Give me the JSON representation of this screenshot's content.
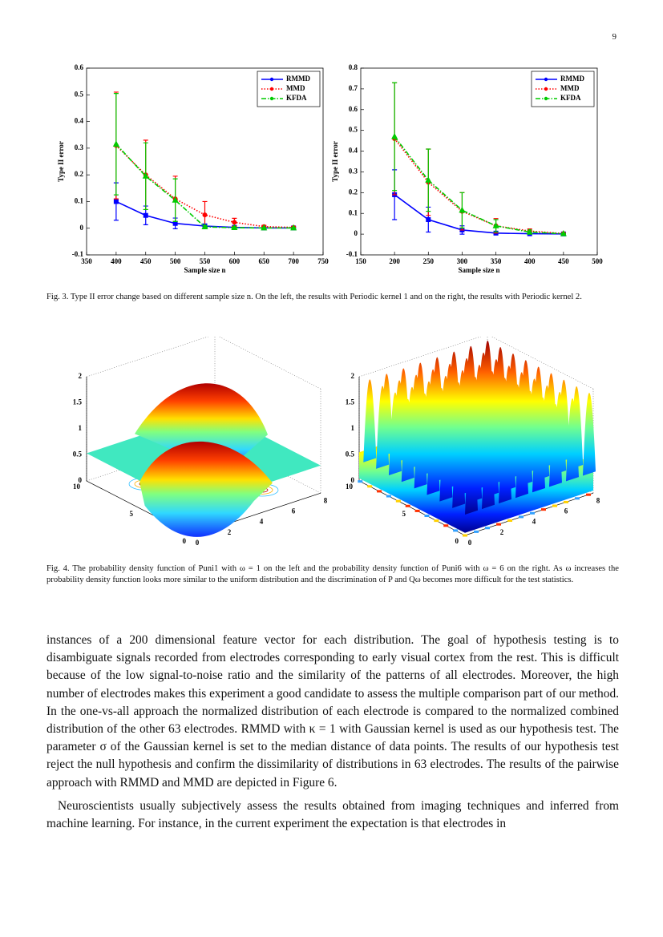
{
  "page_number": "9",
  "chart_data": [
    {
      "type": "line",
      "xlabel": "Sample size n",
      "ylabel": "Type II error",
      "x": [
        400,
        450,
        500,
        550,
        600,
        650,
        700
      ],
      "xlim": [
        350,
        750
      ],
      "xticks": [
        350,
        400,
        450,
        500,
        550,
        600,
        650,
        700,
        750
      ],
      "ylim": [
        -0.1,
        0.6
      ],
      "yticks": [
        -0.1,
        0,
        0.1,
        0.2,
        0.3,
        0.4,
        0.5,
        0.6
      ],
      "legend": "upper right",
      "series": [
        {
          "name": "RMMD",
          "color": "#0000ff",
          "linestyle": "solid",
          "marker": "square",
          "values": [
            0.1,
            0.048,
            0.018,
            0.008,
            0.003,
            0.001,
            0.001
          ],
          "errors": [
            0.07,
            0.035,
            0.02,
            0.008,
            0.004,
            0.002,
            0.002
          ]
        },
        {
          "name": "MMD",
          "color": "#ff0000",
          "linestyle": "dotted",
          "marker": "circle",
          "values": [
            0.31,
            0.2,
            0.11,
            0.05,
            0.022,
            0.006,
            0.003
          ],
          "errors": [
            0.2,
            0.13,
            0.085,
            0.05,
            0.015,
            0.005,
            0.003
          ]
        },
        {
          "name": "KFDA",
          "color": "#00cc00",
          "linestyle": "dashdot",
          "marker": "triangle",
          "values": [
            0.315,
            0.195,
            0.105,
            0.005,
            0.002,
            0.001,
            0.001
          ],
          "errors": [
            0.19,
            0.125,
            0.08,
            0.005,
            0.002,
            0.001,
            0.001
          ]
        }
      ]
    },
    {
      "type": "line",
      "xlabel": "Sample size n",
      "ylabel": "Type II error",
      "x": [
        200,
        250,
        300,
        350,
        400,
        450
      ],
      "xlim": [
        150,
        500
      ],
      "xticks": [
        150,
        200,
        250,
        300,
        350,
        400,
        450,
        500
      ],
      "ylim": [
        -0.1,
        0.8
      ],
      "yticks": [
        -0.1,
        0,
        0.1,
        0.2,
        0.3,
        0.4,
        0.5,
        0.6,
        0.7,
        0.8
      ],
      "legend": "upper right",
      "series": [
        {
          "name": "RMMD",
          "color": "#0000ff",
          "linestyle": "solid",
          "marker": "square",
          "values": [
            0.19,
            0.07,
            0.02,
            0.005,
            0.002,
            0.001
          ],
          "errors": [
            0.12,
            0.06,
            0.02,
            0.005,
            0.002,
            0.001
          ]
        },
        {
          "name": "MMD",
          "color": "#ff0000",
          "linestyle": "dotted",
          "marker": "circle",
          "values": [
            0.46,
            0.25,
            0.11,
            0.04,
            0.015,
            0.003
          ],
          "errors": [
            0.27,
            0.16,
            0.09,
            0.035,
            0.01,
            0.003
          ]
        },
        {
          "name": "KFDA",
          "color": "#00cc00",
          "linestyle": "dashdot",
          "marker": "triangle",
          "values": [
            0.47,
            0.26,
            0.115,
            0.04,
            0.01,
            0.002
          ],
          "errors": [
            0.26,
            0.15,
            0.085,
            0.03,
            0.01,
            0.002
          ]
        }
      ]
    }
  ],
  "figure3_caption": "Fig. 3.    Type II error change based on different sample size n. On the left, the results with Periodic kernel 1 and on the right, the results with Periodic kernel 2.",
  "figure4": {
    "panels": [
      {
        "zticks": [
          0,
          0.5,
          1,
          1.5,
          2
        ],
        "xticks": [
          0,
          2,
          4,
          6,
          8
        ],
        "yticks": [
          0,
          5,
          10
        ]
      },
      {
        "zticks": [
          0,
          0.5,
          1,
          1.5,
          2
        ],
        "xticks": [
          0,
          2,
          4,
          6,
          8
        ],
        "yticks": [
          0,
          5,
          10
        ]
      }
    ],
    "caption": "Fig. 4.    The probability density function of Puni1 with ω = 1 on the left and the probability density function of Puni6 with ω = 6 on the right. As ω increases the probability density function looks more similar to the uniform distribution and the discrimination of P and Qω becomes more difficult for the test statistics."
  },
  "paragraphs": [
    "instances of a 200 dimensional feature vector for each distribution. The goal of hypothesis testing is to disambiguate signals recorded from electrodes corresponding to early visual cortex from the rest. This is difficult because of the low signal-to-noise ratio and the similarity of the patterns of all electrodes. Moreover, the high number of electrodes makes this experiment a good candidate to assess the multiple comparison part of our method. In the one-vs-all approach the normalized distribution of each electrode is compared to the normalized combined distribution of the other 63 electrodes. RMMD with κ = 1 with Gaussian kernel is used as our hypothesis test. The parameter σ of the Gaussian kernel is set to the median distance of data points. The results of our hypothesis test reject the null hypothesis and confirm the dissimilarity of distributions in 63 electrodes. The results of the pairwise approach with RMMD and MMD are depicted in Figure 6.",
    "Neuroscientists usually subjectively assess the results obtained from imaging techniques and inferred from machine learning. For instance, in the current experiment the expectation is that electrodes in"
  ]
}
